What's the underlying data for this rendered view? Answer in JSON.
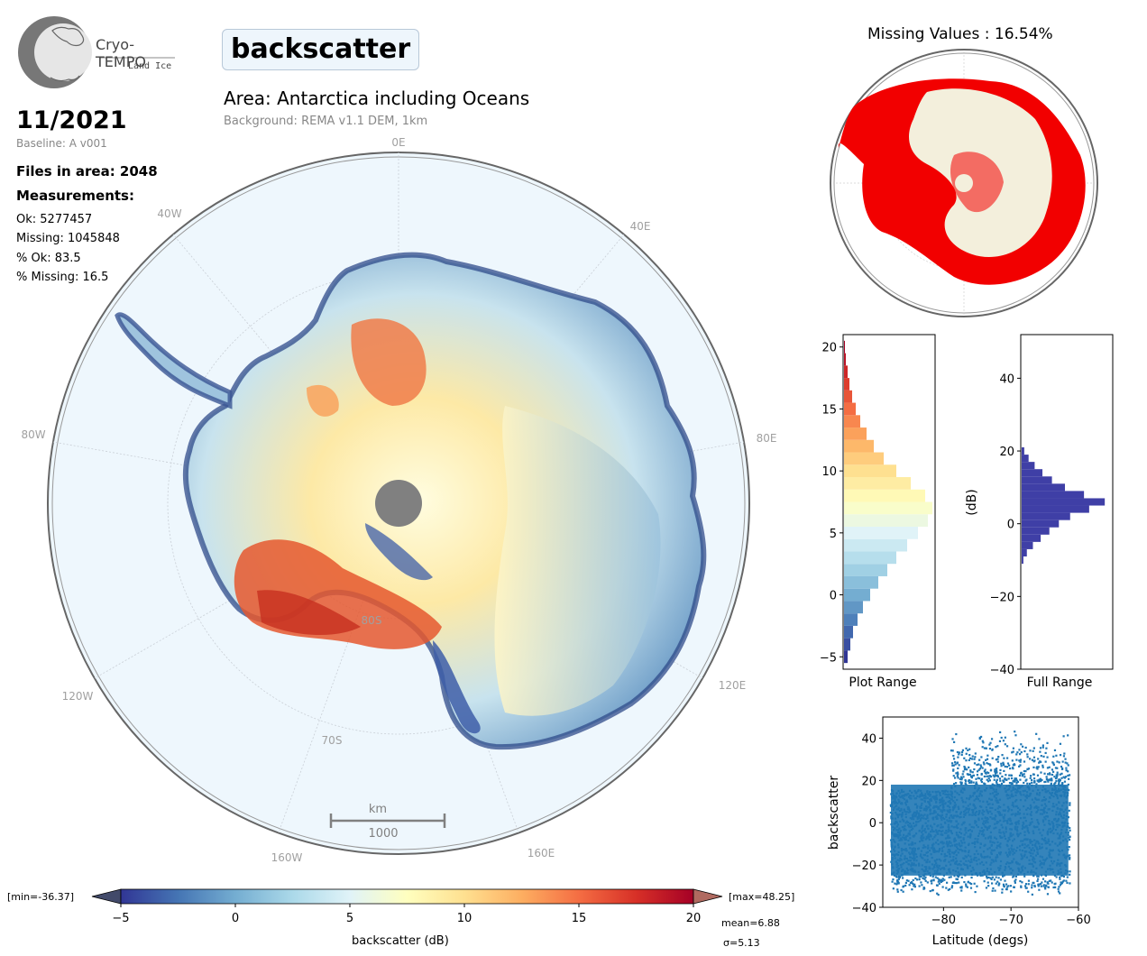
{
  "logo": {
    "name": "Cryo-TEMPO",
    "sub": "Land Ice"
  },
  "title": "backscatter",
  "date": "11/2021",
  "baseline": "Baseline: A v001",
  "files_in_area": "Files in area: 2048",
  "measurements_heading": "Measurements:",
  "stats": {
    "ok": "Ok: 5277457",
    "missing": "Missing: 1045848",
    "pct_ok": "% Ok: 83.5",
    "pct_missing": "% Missing: 16.5"
  },
  "area": "Area: Antarctica including Oceans",
  "background": "Background: REMA v1.1 DEM, 1km",
  "map": {
    "lon_labels": {
      "0E": "0E",
      "40E": "40E",
      "80E": "80E",
      "120E": "120E",
      "160E": "160E",
      "40W": "40W",
      "80W": "80W",
      "120W": "120W",
      "160W": "160W"
    },
    "lat_labels": {
      "80S": "80S",
      "70S": "70S"
    },
    "scalebar_unit": "km",
    "scalebar_value": "1000"
  },
  "missing_title": "Missing Values : 16.54%",
  "colorbar": {
    "min_label": "[min=-36.37]",
    "max_label": "[max=48.25]",
    "ticks": [
      "−5",
      "0",
      "5",
      "10",
      "15",
      "20"
    ],
    "label": "backscatter (dB)",
    "mean": "mean=6.88",
    "sigma": "σ=5.13",
    "colors": [
      "#313695",
      "#4575b4",
      "#74add1",
      "#abd9e9",
      "#e0f3f8",
      "#ffffbf",
      "#fee090",
      "#fdae61",
      "#f46d43",
      "#d73027",
      "#a50026"
    ]
  },
  "hist_plot": {
    "xlabel": "Plot Range",
    "yticks": [
      "20",
      "15",
      "10",
      "5",
      "0",
      "−5"
    ]
  },
  "hist_full": {
    "xlabel": "Full Range",
    "ylabel": "(dB)",
    "yticks": [
      "40",
      "20",
      "0",
      "−20",
      "−40"
    ],
    "color": "#3f3fa6"
  },
  "chart_data": [
    {
      "type": "bar",
      "title": "",
      "xlabel": "Plot Range",
      "ylabel": "",
      "orientation": "horizontal",
      "ylim": [
        -6,
        21
      ],
      "y": [
        -5,
        -4,
        -3,
        -2,
        -1,
        0,
        1,
        2,
        3,
        4,
        5,
        6,
        7,
        8,
        9,
        10,
        11,
        12,
        13,
        14,
        15,
        16,
        17,
        18,
        19,
        20
      ],
      "values": [
        0.04,
        0.07,
        0.1,
        0.15,
        0.21,
        0.29,
        0.38,
        0.48,
        0.58,
        0.7,
        0.82,
        0.93,
        0.98,
        0.9,
        0.74,
        0.58,
        0.44,
        0.33,
        0.25,
        0.18,
        0.13,
        0.09,
        0.06,
        0.04,
        0.02,
        0.01
      ]
    },
    {
      "type": "bar",
      "title": "",
      "xlabel": "Full Range",
      "ylabel": "(dB)",
      "orientation": "horizontal",
      "ylim": [
        -40,
        52
      ],
      "y": [
        -10,
        -8,
        -6,
        -4,
        -2,
        0,
        2,
        4,
        6,
        8,
        10,
        12,
        14,
        16,
        18,
        20
      ],
      "values": [
        0.02,
        0.06,
        0.13,
        0.22,
        0.32,
        0.43,
        0.56,
        0.78,
        0.96,
        0.72,
        0.5,
        0.35,
        0.24,
        0.15,
        0.08,
        0.03
      ]
    },
    {
      "type": "scatter",
      "title": "",
      "xlabel": "Latitude (degs)",
      "ylabel": "backscatter",
      "xlim": [
        -89,
        -60
      ],
      "ylim": [
        -40,
        50
      ],
      "xticks": [
        "−80",
        "−70",
        "−60"
      ],
      "yticks": [
        "40",
        "20",
        "0",
        "−20",
        "−40"
      ],
      "color": "#1f77b4"
    }
  ]
}
